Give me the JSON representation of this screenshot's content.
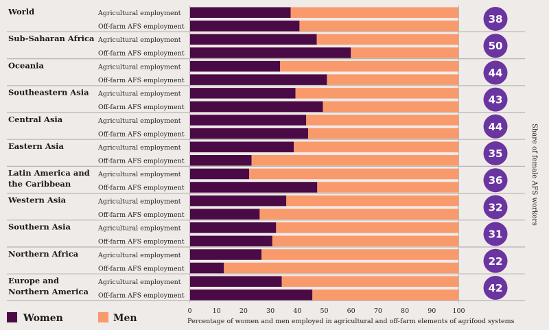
{
  "chart_data": {
    "type": "bar",
    "stacked": true,
    "orientation": "horizontal",
    "xlabel": "Percentage of women and men employed in agricultural and off-farm elements of agrifood systems",
    "xlim": [
      0,
      100
    ],
    "xticks": [
      0,
      10,
      20,
      30,
      40,
      50,
      60,
      70,
      80,
      90,
      100
    ],
    "side_title": "Share of female AFS workers",
    "row_labels": [
      "Agricultural employment",
      "Off-farm AFS employment"
    ],
    "legend": [
      {
        "name": "Women",
        "color": "#4a0a45"
      },
      {
        "name": "Men",
        "color": "#f99a6c"
      }
    ],
    "colors": {
      "women": "#4a0a45",
      "men": "#f99a6c",
      "badge": "#6a35a0"
    },
    "groups": [
      {
        "region": [
          "World"
        ],
        "share_female": 38,
        "agricultural_women": 37.5,
        "offfarm_women": 40.8
      },
      {
        "region": [
          "Sub-Saharan Africa"
        ],
        "share_female": 50,
        "agricultural_women": 47.2,
        "offfarm_women": 59.9
      },
      {
        "region": [
          "Oceania"
        ],
        "share_female": 44,
        "agricultural_women": 33.6,
        "offfarm_women": 51.0
      },
      {
        "region": [
          "Southeastern Asia"
        ],
        "share_female": 43,
        "agricultural_women": 39.3,
        "offfarm_women": 49.5
      },
      {
        "region": [
          "Central Asia"
        ],
        "share_female": 44,
        "agricultural_women": 43.3,
        "offfarm_women": 44.0
      },
      {
        "region": [
          "Eastern Asia"
        ],
        "share_female": 35,
        "agricultural_women": 38.7,
        "offfarm_women": 23.0
      },
      {
        "region": [
          "Latin America and",
          "the Caribbean"
        ],
        "share_female": 36,
        "agricultural_women": 22.1,
        "offfarm_women": 47.4
      },
      {
        "region": [
          "Western Asia"
        ],
        "share_female": 32,
        "agricultural_women": 35.9,
        "offfarm_women": 26.0
      },
      {
        "region": [
          "Southern Asia"
        ],
        "share_female": 31,
        "agricultural_women": 32.1,
        "offfarm_women": 30.7
      },
      {
        "region": [
          "Northern Africa"
        ],
        "share_female": 22,
        "agricultural_women": 26.7,
        "offfarm_women": 12.7
      },
      {
        "region": [
          "Europe and",
          "Northern America"
        ],
        "share_female": 42,
        "agricultural_women": 34.2,
        "offfarm_women": 45.6
      }
    ]
  }
}
